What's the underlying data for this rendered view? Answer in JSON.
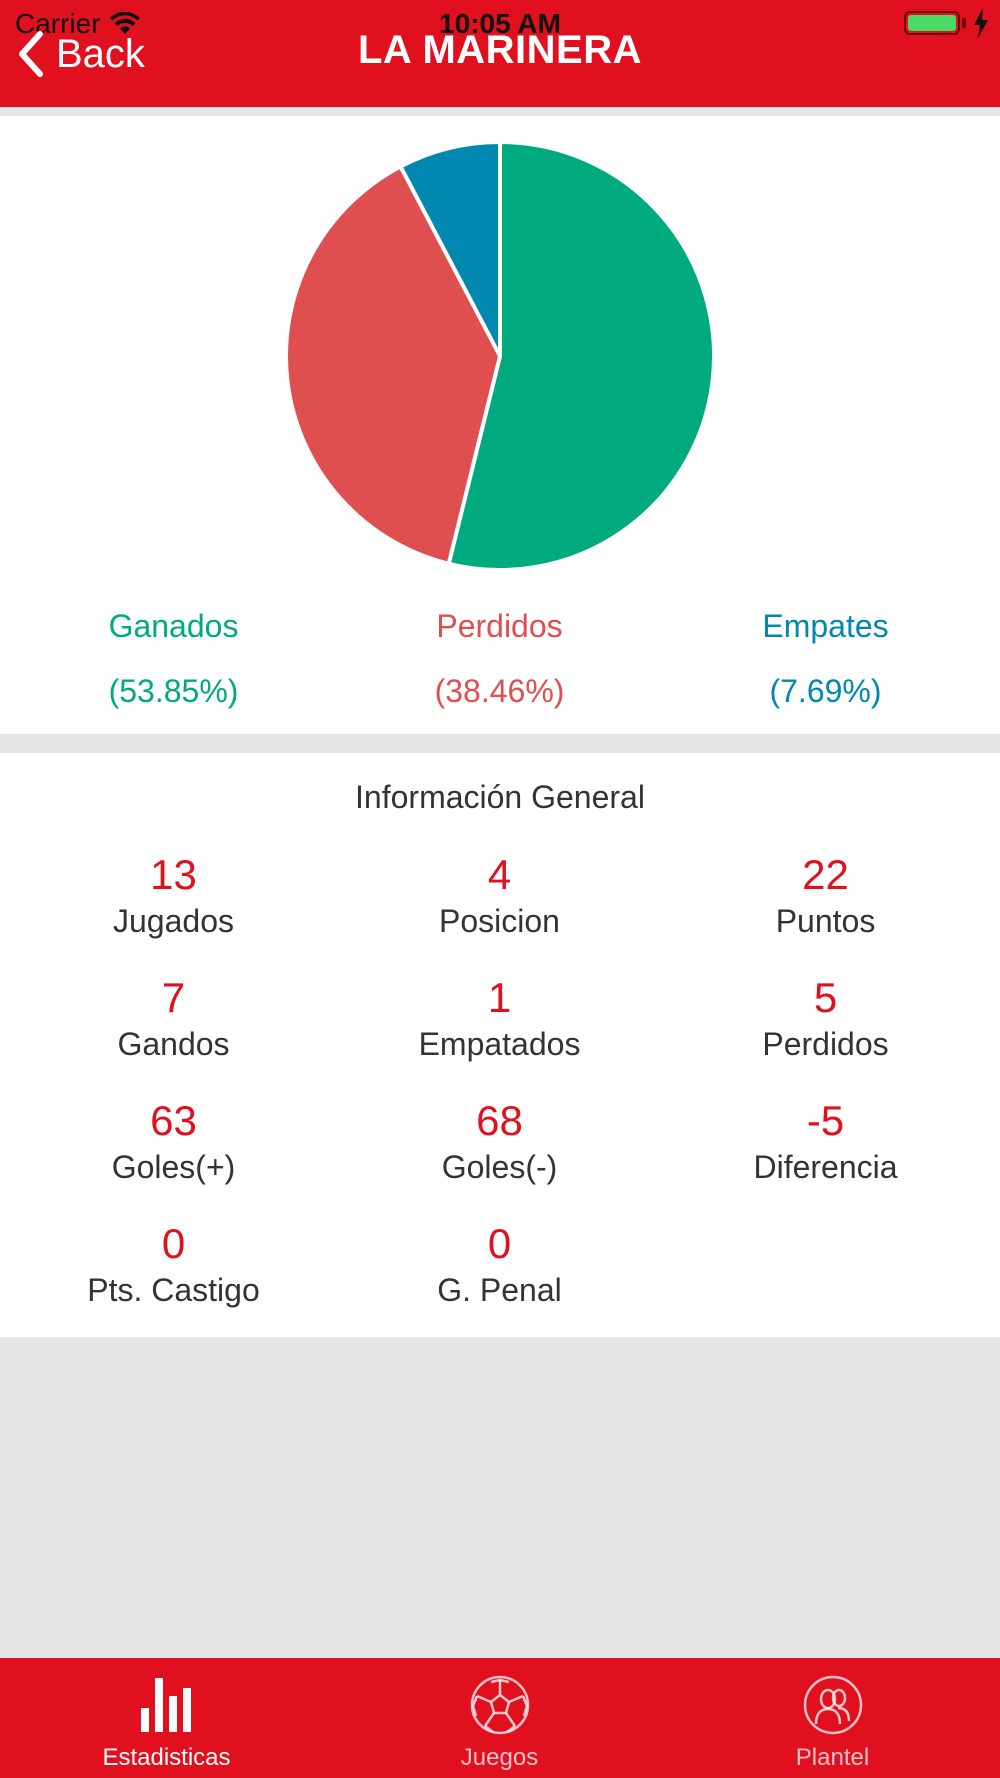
{
  "status_bar": {
    "carrier": "Carrier",
    "time": "10:05 AM"
  },
  "header": {
    "back_label": "Back",
    "title": "LA MARINERA"
  },
  "chart_data": {
    "type": "pie",
    "slices": [
      {
        "label": "Ganados",
        "value": 53.85,
        "percent_label": "(53.85%)",
        "color": "#00aa7f"
      },
      {
        "label": "Perdidos",
        "value": 38.46,
        "percent_label": "(38.46%)",
        "color": "#e04f4f"
      },
      {
        "label": "Empates",
        "value": 7.69,
        "percent_label": "(7.69%)",
        "color": "#0088b0"
      }
    ]
  },
  "info": {
    "title": "Información General",
    "stats": [
      {
        "value": "13",
        "label": "Jugados"
      },
      {
        "value": "4",
        "label": "Posicion"
      },
      {
        "value": "22",
        "label": "Puntos"
      },
      {
        "value": "7",
        "label": "Gandos"
      },
      {
        "value": "1",
        "label": "Empatados"
      },
      {
        "value": "5",
        "label": "Perdidos"
      },
      {
        "value": "63",
        "label": "Goles(+)"
      },
      {
        "value": "68",
        "label": "Goles(-)"
      },
      {
        "value": "-5",
        "label": "Diferencia"
      },
      {
        "value": "0",
        "label": "Pts. Castigo"
      },
      {
        "value": "0",
        "label": "G. Penal"
      }
    ]
  },
  "tabbar": {
    "tabs": [
      {
        "label": "Estadisticas",
        "icon": "bar-chart-icon",
        "active": true
      },
      {
        "label": "Juegos",
        "icon": "soccer-ball-icon",
        "active": false
      },
      {
        "label": "Plantel",
        "icon": "team-icon",
        "active": false
      }
    ]
  },
  "colors": {
    "brand": "#e0101f",
    "won": "#00aa7f",
    "lost": "#e04f4f",
    "draw": "#0088b0"
  }
}
